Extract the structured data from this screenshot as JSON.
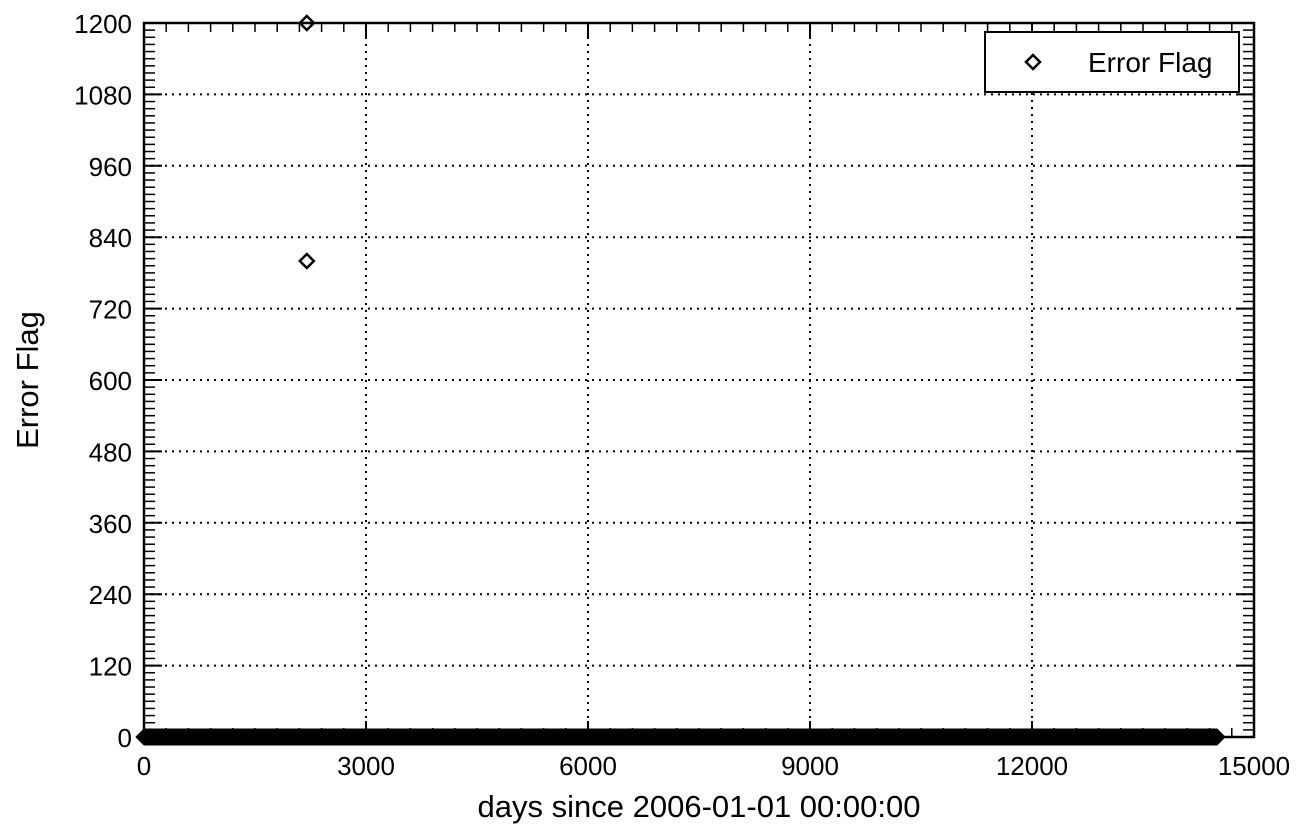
{
  "chart_data": {
    "type": "scatter",
    "title": "",
    "xlabel": "days since 2006-01-01 00:00:00",
    "ylabel": "Error Flag",
    "xlim": [
      0,
      15000
    ],
    "ylim": [
      0,
      1200
    ],
    "xticks": [
      0,
      3000,
      6000,
      9000,
      12000,
      15000
    ],
    "yticks": [
      0,
      120,
      240,
      360,
      480,
      600,
      720,
      840,
      960,
      1080,
      1200
    ],
    "grid": true,
    "legend_position": "top-right",
    "marker": "diamond-open",
    "series": [
      {
        "name": "Error Flag",
        "x": [
          2200,
          2200
        ],
        "y": [
          1200,
          800
        ],
        "dense_baseline": {
          "x_from": 0,
          "x_to": 14500,
          "y": 0
        }
      }
    ]
  }
}
